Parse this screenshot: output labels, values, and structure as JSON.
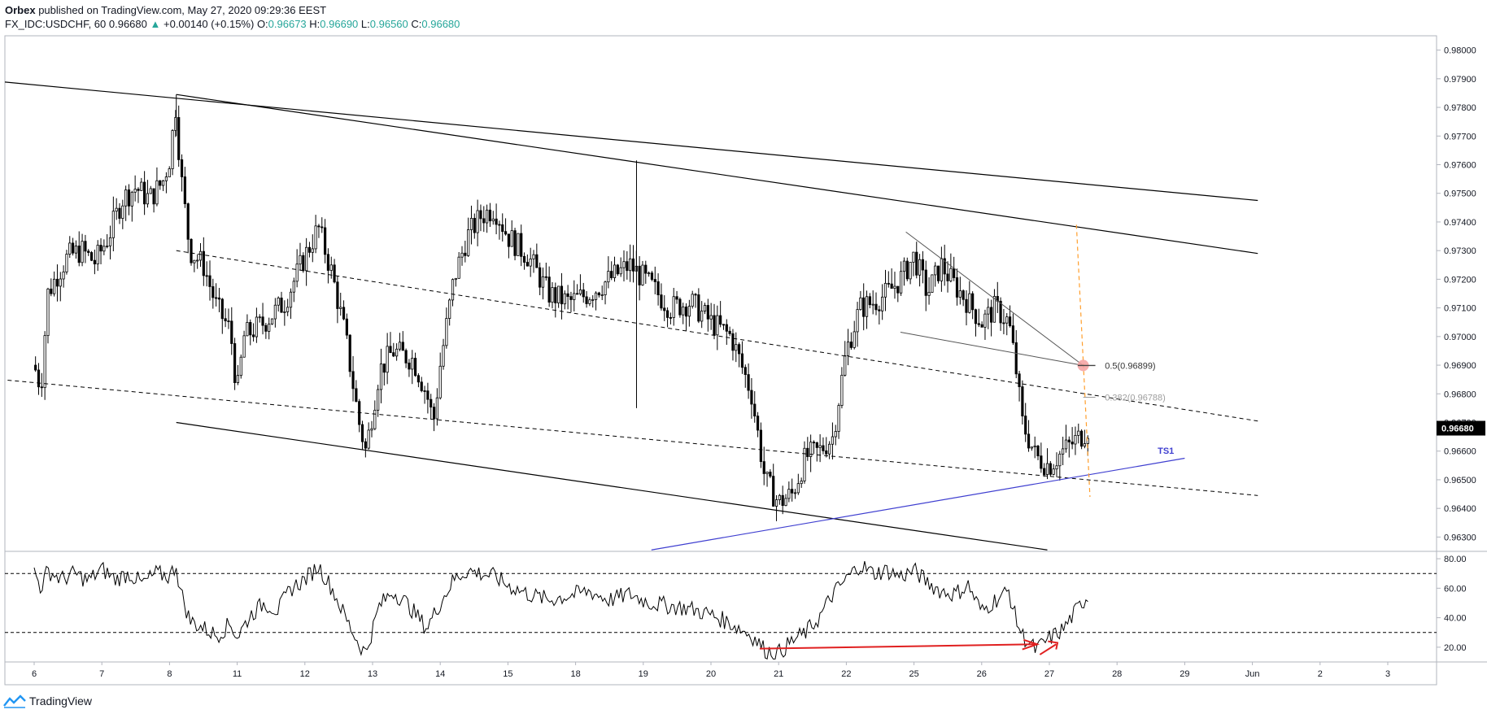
{
  "header": {
    "publisher": "Orbex",
    "published_text": "published on TradingView.com, May 27, 2020 09:29:36 EEST",
    "symbol": "FX_IDC:USDCHF, 60",
    "last": "0.96680",
    "change_arrow": "▲",
    "change": "+0.00140 (+0.15%)",
    "o_label": "O:",
    "o_value": "0.96673",
    "h_label": "H:",
    "h_value": "0.96690",
    "l_label": "L:",
    "l_value": "0.96560",
    "c_label": "C:",
    "c_value": "0.96680"
  },
  "footer": {
    "brand": "TradingView"
  },
  "colors": {
    "candle": "#000000",
    "trend": "#000000",
    "ts1": "#3f3fd0",
    "fib_dash": "#ff9e2c",
    "arrow": "#e02020",
    "price_tag": "#000000",
    "fib_dot": "#f4a0a0"
  },
  "chart_data": [
    {
      "type": "candlestick",
      "symbol": "FX_IDC:USDCHF",
      "timeframe": "60",
      "ylim": [
        0.9625,
        0.9805
      ],
      "y_ticks": [
        "0.98000",
        "0.97900",
        "0.97800",
        "0.97700",
        "0.97600",
        "0.97500",
        "0.97400",
        "0.97300",
        "0.97200",
        "0.97100",
        "0.97000",
        "0.96900",
        "0.96800",
        "0.96700",
        "0.96600",
        "0.96500",
        "0.96400",
        "0.96300"
      ],
      "x_ticks": [
        "6",
        "7",
        "8",
        "11",
        "12",
        "13",
        "14",
        "15",
        "18",
        "19",
        "20",
        "21",
        "22",
        "25",
        "26",
        "27",
        "28",
        "29",
        "Jun",
        "2",
        "3"
      ],
      "close_points": [
        [
          0.0,
          0.969
        ],
        [
          0.1,
          0.9682
        ],
        [
          0.2,
          0.9715
        ],
        [
          0.35,
          0.9722
        ],
        [
          0.5,
          0.9728
        ],
        [
          0.7,
          0.973
        ],
        [
          0.9,
          0.9726
        ],
        [
          1.1,
          0.9735
        ],
        [
          1.3,
          0.9748
        ],
        [
          1.5,
          0.9752
        ],
        [
          1.7,
          0.9748
        ],
        [
          1.9,
          0.9754
        ],
        [
          2.0,
          0.9762
        ],
        [
          2.1,
          0.9782
        ],
        [
          2.15,
          0.976
        ],
        [
          2.3,
          0.973
        ],
        [
          2.5,
          0.9725
        ],
        [
          2.7,
          0.971
        ],
        [
          2.9,
          0.9702
        ],
        [
          3.0,
          0.968
        ],
        [
          3.1,
          0.97
        ],
        [
          3.4,
          0.9705
        ],
        [
          3.7,
          0.9712
        ],
        [
          4.0,
          0.9728
        ],
        [
          4.2,
          0.9738
        ],
        [
          4.4,
          0.9722
        ],
        [
          4.6,
          0.97
        ],
        [
          4.8,
          0.967
        ],
        [
          4.9,
          0.966
        ],
        [
          5.1,
          0.9688
        ],
        [
          5.3,
          0.9695
        ],
        [
          5.6,
          0.9692
        ],
        [
          5.8,
          0.968
        ],
        [
          5.9,
          0.967
        ],
        [
          6.0,
          0.969
        ],
        [
          6.2,
          0.972
        ],
        [
          6.4,
          0.9735
        ],
        [
          6.6,
          0.9742
        ],
        [
          6.8,
          0.9745
        ],
        [
          7.0,
          0.9735
        ],
        [
          7.3,
          0.9728
        ],
        [
          7.6,
          0.9715
        ],
        [
          7.9,
          0.9712
        ],
        [
          8.2,
          0.9715
        ],
        [
          8.5,
          0.972
        ],
        [
          8.8,
          0.9725
        ],
        [
          9.1,
          0.9718
        ],
        [
          9.4,
          0.971
        ],
        [
          9.7,
          0.9712
        ],
        [
          10.0,
          0.9705
        ],
        [
          10.3,
          0.97
        ],
        [
          10.6,
          0.968
        ],
        [
          10.8,
          0.965
        ],
        [
          11.0,
          0.9642
        ],
        [
          11.2,
          0.9645
        ],
        [
          11.4,
          0.9658
        ],
        [
          11.6,
          0.966
        ],
        [
          11.8,
          0.9665
        ],
        [
          12.0,
          0.9695
        ],
        [
          12.2,
          0.971
        ],
        [
          12.4,
          0.9712
        ],
        [
          12.6,
          0.9715
        ],
        [
          12.8,
          0.972
        ],
        [
          13.0,
          0.9728
        ],
        [
          13.2,
          0.9715
        ],
        [
          13.4,
          0.9725
        ],
        [
          13.6,
          0.9718
        ],
        [
          13.8,
          0.9712
        ],
        [
          14.0,
          0.9705
        ],
        [
          14.2,
          0.971
        ],
        [
          14.4,
          0.9705
        ],
        [
          14.5,
          0.969
        ],
        [
          14.6,
          0.967
        ],
        [
          14.8,
          0.9658
        ],
        [
          15.0,
          0.9655
        ],
        [
          15.2,
          0.966
        ],
        [
          15.4,
          0.9664
        ],
        [
          15.5,
          0.9666
        ],
        [
          15.57,
          0.9668
        ]
      ],
      "annotations": [
        {
          "label": "0.5(0.96899)",
          "price": 0.96899
        },
        {
          "label": "0.382(0.96788)",
          "price": 0.96788
        },
        {
          "label": "TS1",
          "type": "trendline"
        }
      ],
      "last_price_label": "0.96680"
    },
    {
      "type": "line",
      "indicator": "RSI",
      "ylim": [
        10,
        85
      ],
      "y_ticks": [
        "80.00",
        "60.00",
        "40.00",
        "20.00"
      ],
      "levels": [
        70,
        30
      ],
      "points": [
        [
          0.0,
          72
        ],
        [
          0.1,
          60
        ],
        [
          0.2,
          72
        ],
        [
          0.4,
          66
        ],
        [
          0.6,
          70
        ],
        [
          0.8,
          65
        ],
        [
          1.0,
          73
        ],
        [
          1.2,
          66
        ],
        [
          1.4,
          70
        ],
        [
          1.6,
          63
        ],
        [
          1.8,
          70
        ],
        [
          2.0,
          68
        ],
        [
          2.1,
          76
        ],
        [
          2.15,
          60
        ],
        [
          2.3,
          38
        ],
        [
          2.5,
          33
        ],
        [
          2.7,
          28
        ],
        [
          2.9,
          36
        ],
        [
          3.0,
          27
        ],
        [
          3.2,
          42
        ],
        [
          3.4,
          50
        ],
        [
          3.6,
          45
        ],
        [
          3.8,
          60
        ],
        [
          4.0,
          66
        ],
        [
          4.2,
          75
        ],
        [
          4.4,
          60
        ],
        [
          4.6,
          40
        ],
        [
          4.8,
          22
        ],
        [
          4.9,
          16
        ],
        [
          5.1,
          48
        ],
        [
          5.3,
          58
        ],
        [
          5.5,
          50
        ],
        [
          5.8,
          33
        ],
        [
          6.0,
          50
        ],
        [
          6.2,
          66
        ],
        [
          6.4,
          72
        ],
        [
          6.6,
          70
        ],
        [
          6.8,
          68
        ],
        [
          7.0,
          62
        ],
        [
          7.3,
          56
        ],
        [
          7.6,
          52
        ],
        [
          7.9,
          55
        ],
        [
          8.2,
          58
        ],
        [
          8.5,
          52
        ],
        [
          8.8,
          56
        ],
        [
          9.1,
          50
        ],
        [
          9.4,
          48
        ],
        [
          9.7,
          46
        ],
        [
          10.0,
          42
        ],
        [
          10.3,
          36
        ],
        [
          10.6,
          28
        ],
        [
          10.8,
          18
        ],
        [
          11.0,
          16
        ],
        [
          11.2,
          24
        ],
        [
          11.4,
          30
        ],
        [
          11.6,
          40
        ],
        [
          11.8,
          56
        ],
        [
          12.0,
          66
        ],
        [
          12.2,
          76
        ],
        [
          12.4,
          70
        ],
        [
          12.6,
          72
        ],
        [
          12.8,
          68
        ],
        [
          13.0,
          72
        ],
        [
          13.2,
          64
        ],
        [
          13.4,
          58
        ],
        [
          13.6,
          56
        ],
        [
          13.8,
          62
        ],
        [
          14.0,
          44
        ],
        [
          14.2,
          52
        ],
        [
          14.4,
          58
        ],
        [
          14.5,
          40
        ],
        [
          14.6,
          28
        ],
        [
          14.8,
          18
        ],
        [
          15.0,
          26
        ],
        [
          15.2,
          32
        ],
        [
          15.4,
          45
        ],
        [
          15.57,
          55
        ]
      ]
    }
  ]
}
